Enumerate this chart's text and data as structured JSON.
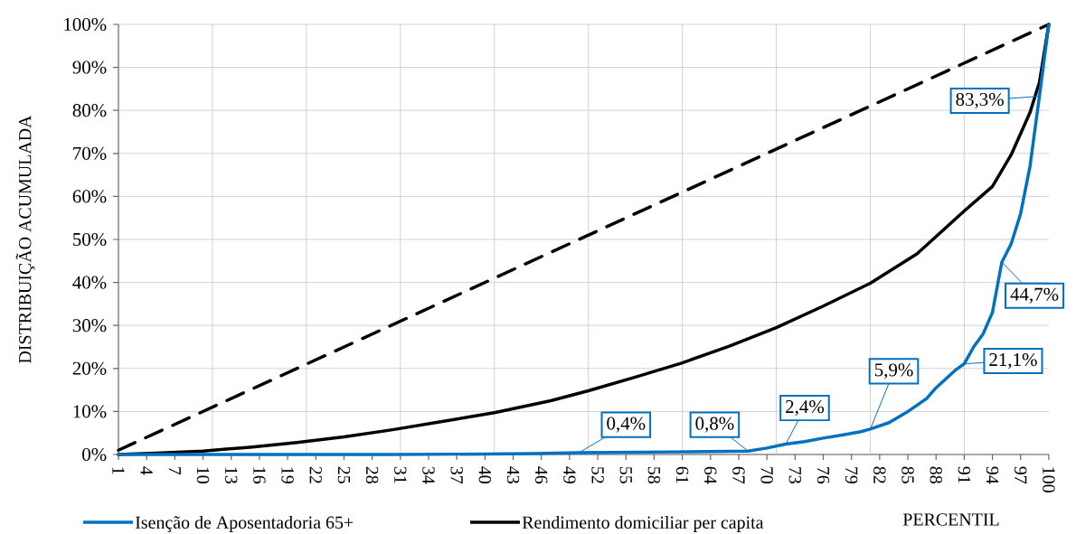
{
  "chart_data": {
    "type": "line",
    "xlabel": "PERCENTIL",
    "ylabel": "DISTRIBUIÇÃO ACUMULADA",
    "xlim": [
      1,
      100
    ],
    "ylim": [
      0,
      100
    ],
    "xticks": [
      1,
      4,
      7,
      10,
      13,
      16,
      19,
      22,
      25,
      28,
      31,
      34,
      37,
      40,
      43,
      46,
      49,
      52,
      55,
      58,
      61,
      64,
      67,
      70,
      73,
      76,
      79,
      82,
      85,
      88,
      91,
      94,
      97,
      100,
      {
        "value": 11,
        "label": null
      },
      {
        "value": 21,
        "label": null
      },
      {
        "value": 31,
        "label": null
      },
      {
        "value": 41,
        "label": null
      },
      {
        "value": 51,
        "label": null
      },
      {
        "value": 61,
        "label": null
      },
      {
        "value": 71,
        "label": null
      },
      {
        "value": 81,
        "label": null
      },
      {
        "value": 91,
        "label": null
      }
    ],
    "yticks": [
      {
        "value": 0,
        "label": "0%"
      },
      {
        "value": 10,
        "label": "10%"
      },
      {
        "value": 20,
        "label": "20%"
      },
      {
        "value": 30,
        "label": "30%"
      },
      {
        "value": 40,
        "label": "40%"
      },
      {
        "value": 50,
        "label": "50%"
      },
      {
        "value": 60,
        "label": "60%"
      },
      {
        "value": 70,
        "label": "70%"
      },
      {
        "value": 80,
        "label": "80%"
      },
      {
        "value": 90,
        "label": "90%"
      },
      {
        "value": 100,
        "label": "100%"
      }
    ],
    "grid": true,
    "legend": "bottom",
    "marker": "none",
    "series": [
      {
        "color": "#000000",
        "line_style": "dashed",
        "x": [
          1,
          100
        ],
        "values": [
          1,
          100
        ]
      },
      {
        "name": "Rendimento domiciliar per capita",
        "color": "#000000",
        "line_style": "solid",
        "x": [
          1,
          5,
          10,
          15,
          20,
          25,
          30,
          35,
          41,
          47,
          51,
          56,
          61,
          66,
          71,
          76,
          81,
          86,
          91,
          94,
          96,
          98,
          99,
          100
        ],
        "values": [
          0,
          0.3,
          0.8,
          1.7,
          2.8,
          4.1,
          5.7,
          7.5,
          9.7,
          12.5,
          14.8,
          18,
          21.3,
          25.2,
          29.5,
          34.5,
          39.8,
          46.7,
          56.6,
          62.3,
          69.7,
          79.5,
          86.5,
          100
        ]
      },
      {
        "name": "Isenção de Aposentadoria 65+",
        "color": "#0070c0",
        "line_style": "solid",
        "x": [
          1,
          10,
          20,
          30,
          40,
          45,
          50,
          55,
          60,
          64,
          68,
          70,
          72,
          74,
          76,
          78,
          80,
          81,
          83,
          85,
          87,
          88,
          89,
          90,
          91,
          92,
          93,
          94,
          95,
          96,
          97,
          98,
          99,
          100
        ],
        "values": [
          0,
          0,
          0,
          0,
          0.1,
          0.2,
          0.4,
          0.5,
          0.6,
          0.7,
          0.8,
          1.5,
          2.4,
          3,
          3.8,
          4.5,
          5.3,
          5.9,
          7.4,
          10,
          13,
          15.5,
          17.5,
          19.5,
          21.1,
          25,
          28,
          33,
          44.7,
          49,
          56,
          67,
          83.3,
          100
        ]
      }
    ],
    "annotations": [
      {
        "text": "0,4%",
        "x": 50,
        "y": 0.4
      },
      {
        "text": "0,8%",
        "x": 68,
        "y": 0.8
      },
      {
        "text": "2,4%",
        "x": 72,
        "y": 2.4
      },
      {
        "text": "5,9%",
        "x": 81,
        "y": 5.9
      },
      {
        "text": "21,1%",
        "x": 91,
        "y": 21.1
      },
      {
        "text": "44,7%",
        "x": 95,
        "y": 44.7
      },
      {
        "text": "83,3%",
        "x": 99,
        "y": 83.3
      }
    ]
  }
}
